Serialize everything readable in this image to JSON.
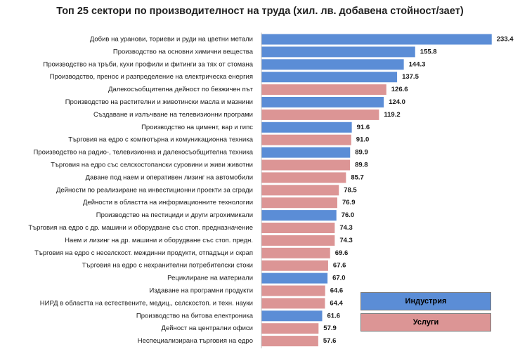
{
  "chart_data": {
    "type": "bar",
    "orientation": "horizontal",
    "title": "Топ 25 сектори по производителност на труда (хил. лв. добавена стойност/заeт)",
    "xlabel": "",
    "ylabel": "",
    "xlim": [
      0,
      235
    ],
    "grid": false,
    "legend_position": "bottom-right",
    "colors": {
      "industry": "#5b8dd6",
      "services": "#dc9595"
    },
    "legend": [
      {
        "key": "industry",
        "label": "Индустрия"
      },
      {
        "key": "services",
        "label": "Услуги"
      }
    ],
    "categories": [
      "Добив на уранови, ториеви и руди на цветни метали",
      "Производство на основни химични вещества",
      "Производство на тръби, кухи профили и фитинги за тях от стомана",
      "Производство, пренос и разпределение на електрическа енергия",
      "Далекосъобщителна дейност по безжичен път",
      "Производство на растителни и животински масла и мазнини",
      "Създаване и излъчване на телевизионни програми",
      "Производство на цимент, вар и гипс",
      "Търговия на едро с компютърна и комуникационна техника",
      "Производство на радио-, телевизионна и далекосъобщителна техника",
      "Търговия на едро със селскостопански суровини и живи животни",
      "Даване под наем и оперативен лизинг на автомобили",
      "Дейности по реализиране на инвестиционни проекти за сгради",
      "Дейности в областта на информационните технологии",
      "Производство на пестициди и други агрохимикали",
      "Търговия на едро с др. машини и оборудване със стоп. предназначение",
      "Наем и лизинг на др. машини и оборудване със стоп. предн.",
      "Търговия на едро с неселскост. междинни продукти, отпадъци и скрап",
      "Търговия на едро с нехранителни потребителски стоки",
      "Рециклиране на материали",
      "Издаване на програмни продукти",
      "НИРД в областта на естествените, медиц., селскостоп. и техн. науки",
      "Производство на битова електроника",
      "Дейност на централни офиси",
      "Неспециализирана търговия на едро"
    ],
    "values": [
      233.4,
      155.8,
      144.3,
      137.5,
      126.6,
      124.0,
      119.2,
      91.6,
      91.0,
      89.9,
      89.8,
      85.7,
      78.5,
      76.9,
      76.0,
      74.3,
      74.3,
      69.6,
      67.6,
      67.0,
      64.6,
      64.4,
      61.6,
      57.9,
      57.6
    ],
    "value_labels": [
      "233.4",
      "155.8",
      "144.3",
      "137.5",
      "126.6",
      "124.0",
      "119.2",
      "91.6",
      "91.0",
      "89.9",
      "89.8",
      "85.7",
      "78.5",
      "76.9",
      "76.0",
      "74.3",
      "74.3",
      "69.6",
      "67.6",
      "67.0",
      "64.6",
      "64.4",
      "61.6",
      "57.9",
      "57.6"
    ],
    "groups": [
      "industry",
      "industry",
      "industry",
      "industry",
      "services",
      "industry",
      "services",
      "industry",
      "services",
      "industry",
      "services",
      "services",
      "services",
      "services",
      "industry",
      "services",
      "services",
      "services",
      "services",
      "industry",
      "services",
      "services",
      "industry",
      "services",
      "services"
    ]
  }
}
